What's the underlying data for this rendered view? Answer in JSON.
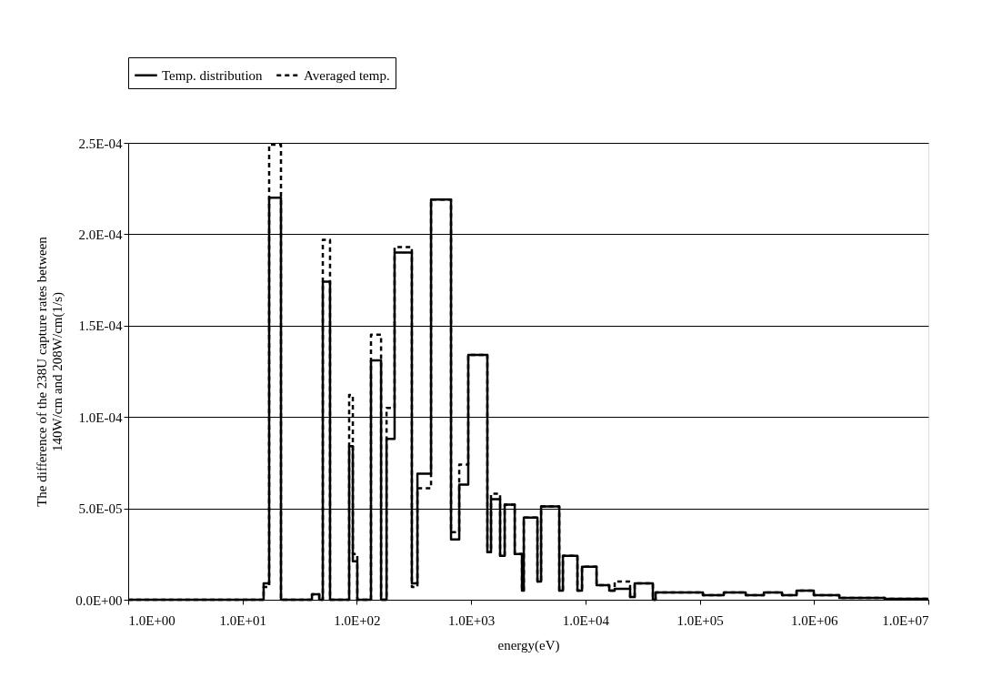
{
  "chart_data": {
    "type": "step",
    "xlabel": "energy(eV)",
    "ylabel": "The difference of the 238U capture rates between\n140W/cm and 208W/cm(1/s)",
    "log": "x",
    "grid": "y",
    "legend": "top",
    "marker": "none",
    "xlim": [
      1,
      10000000
    ],
    "ylim": [
      0,
      0.00025
    ],
    "xticks": [
      {
        "value": 1,
        "label": "1.0E+00"
      },
      {
        "value": 10,
        "label": "1.0E+01"
      },
      {
        "value": 100,
        "label": "1.0E+02"
      },
      {
        "value": 1000,
        "label": "1.0E+03"
      },
      {
        "value": 10000,
        "label": "1.0E+04"
      },
      {
        "value": 100000,
        "label": "1.0E+05"
      },
      {
        "value": 1000000,
        "label": "1.0E+06"
      },
      {
        "value": 10000000,
        "label": "1.0E+07"
      }
    ],
    "yticks": [
      {
        "value": 0,
        "label": "0.0E+00"
      },
      {
        "value": 5e-05,
        "label": "5.0E-05"
      },
      {
        "value": 0.0001,
        "label": "1.0E-04"
      },
      {
        "value": 0.00015,
        "label": "1.5E-04"
      },
      {
        "value": 0.0002,
        "label": "2.0E-04"
      },
      {
        "value": 0.00025,
        "label": "2.5E-04"
      }
    ],
    "x": [
      1,
      15.3,
      17.1,
      21.7,
      40.5,
      46.9,
      50.4,
      58.3,
      85.7,
      92.3,
      101,
      133,
      163,
      182,
      214,
      303,
      339,
      446,
      667,
      787,
      944,
      1387,
      1493,
      1793,
      1966,
      2407,
      2785,
      2889,
      3802,
      4093,
      5902,
      6353,
      8511,
      9333,
      12510,
      16150,
      18030,
      24600,
      26970,
      38900,
      41100,
      106600,
      162500,
      252400,
      363900,
      524800,
      703100,
      995400,
      1663000,
      4159000,
      10000000
    ],
    "series": [
      {
        "name": "Temp. distribution",
        "color": "#000000",
        "line_style": "solid",
        "values": [
          0,
          9e-06,
          0.00022,
          0,
          3e-06,
          0,
          0.000174,
          0,
          8.4e-05,
          2.1e-05,
          0,
          0.000131,
          0,
          8.8e-05,
          0.00019,
          9e-06,
          6.9e-05,
          0.000219,
          3.3e-05,
          6.3e-05,
          0.000134,
          2.6e-05,
          5.5e-05,
          2.4e-05,
          5.2e-05,
          2.5e-05,
          5e-06,
          4.5e-05,
          1e-05,
          5.1e-05,
          5e-06,
          2.4e-05,
          5e-06,
          1.8e-05,
          8e-06,
          5e-06,
          6e-06,
          1.5e-06,
          9e-06,
          0,
          4e-06,
          2.5e-06,
          4e-06,
          2.5e-06,
          4e-06,
          2.5e-06,
          5e-06,
          2.5e-06,
          1e-06,
          5e-07,
          5e-07
        ]
      },
      {
        "name": "Averaged temp.",
        "color": "#000000",
        "line_style": "dashed",
        "values": [
          0,
          7e-06,
          0.000249,
          0,
          3e-06,
          0,
          0.000197,
          0,
          0.000112,
          2.5e-05,
          0,
          0.000145,
          0,
          0.000105,
          0.000193,
          7e-06,
          6.1e-05,
          0.000219,
          3.7e-05,
          7.4e-05,
          0.000134,
          2.6e-05,
          5.8e-05,
          2.4e-05,
          5.2e-05,
          2.5e-05,
          5e-06,
          4.5e-05,
          1e-05,
          5.1e-05,
          5e-06,
          2.4e-05,
          5e-06,
          1.8e-05,
          8e-06,
          5e-06,
          1e-05,
          1.5e-06,
          9e-06,
          0,
          4e-06,
          2.5e-06,
          4e-06,
          2.5e-06,
          4e-06,
          2.5e-06,
          5e-06,
          2.5e-06,
          1e-06,
          5e-07,
          5e-07
        ]
      }
    ]
  }
}
